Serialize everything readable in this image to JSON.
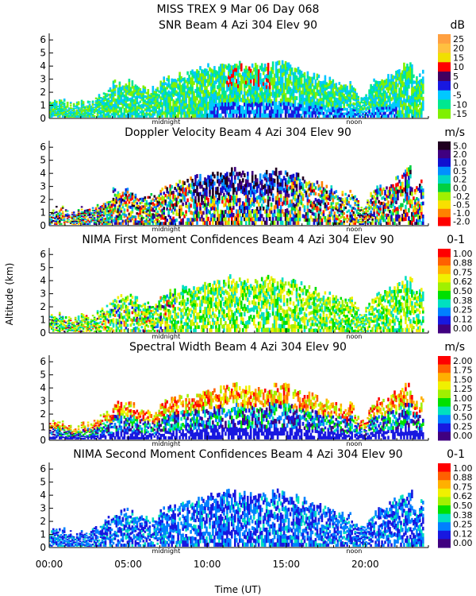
{
  "header": {
    "line1": "MISS TREX    9 Mar 06 Day 068"
  },
  "axes": {
    "ylabel": "Altitude (km)",
    "xlabel": "Time (UT)",
    "xticks": [
      "00:00",
      "05:00",
      "10:00",
      "15:00",
      "20:00"
    ],
    "yticks": [
      "0",
      "1",
      "2",
      "3",
      "4",
      "5",
      "6"
    ],
    "midnight_label": "midnight",
    "noon_label": "noon"
  },
  "chart_data": [
    {
      "type": "heatmap",
      "title": "SNR Beam 4 Azi 304 Elev 90",
      "unit": "dB",
      "colorbar_labels": [
        "25",
        "20",
        "15",
        "10",
        "5",
        "0",
        "-5",
        "-10",
        "-15"
      ],
      "colors": [
        "#ffa040",
        "#ffc040",
        "#f0e000",
        "#ff0000",
        "#400060",
        "#1818e0",
        "#00c8ff",
        "#00e890",
        "#80f000"
      ],
      "xlim": [
        0,
        24
      ],
      "ylim": [
        0,
        6.5
      ],
      "xlabel": "Time (UT)",
      "ylabel": "Altitude (km)"
    },
    {
      "type": "heatmap",
      "title": "Doppler Velocity Beam 4 Azi 304 Elev 90",
      "unit": "m/s",
      "colorbar_labels": [
        "5.0",
        "2.0",
        "1.0",
        "0.5",
        "0.2",
        "0.0",
        "-0.2",
        "-0.5",
        "-1.0",
        "-2.0"
      ],
      "colors": [
        "#200020",
        "#400080",
        "#1010d0",
        "#0090ff",
        "#00d8c0",
        "#00d040",
        "#a0f000",
        "#f8e000",
        "#ff8000",
        "#ff0000"
      ],
      "xlim": [
        0,
        24
      ],
      "ylim": [
        0,
        6.5
      ],
      "xlabel": "Time (UT)",
      "ylabel": "Altitude (km)"
    },
    {
      "type": "heatmap",
      "title": "NIMA First Moment Confidences Beam 4 Azi 304 Elev 90",
      "unit": "0-1",
      "colorbar_labels": [
        "1.00",
        "0.88",
        "0.75",
        "0.62",
        "0.50",
        "0.38",
        "0.25",
        "0.12",
        "0.00"
      ],
      "colors": [
        "#ff0000",
        "#ff6000",
        "#ffb000",
        "#f0f000",
        "#a0f000",
        "#00e000",
        "#00e0c0",
        "#0080ff",
        "#1818e0",
        "#400080"
      ],
      "xlim": [
        0,
        24
      ],
      "ylim": [
        0,
        6.5
      ],
      "xlabel": "Time (UT)",
      "ylabel": "Altitude (km)"
    },
    {
      "type": "heatmap",
      "title": "Spectral Width Beam 4 Azi 304 Elev 90",
      "unit": "m/s",
      "colorbar_labels": [
        "2.00",
        "1.75",
        "1.50",
        "1.25",
        "1.00",
        "0.75",
        "0.50",
        "0.25",
        "0.00"
      ],
      "colors": [
        "#ff0000",
        "#ff6000",
        "#ffb000",
        "#f0f000",
        "#a0f000",
        "#00e000",
        "#00e0c0",
        "#0080ff",
        "#1818e0",
        "#400080"
      ],
      "xlim": [
        0,
        24
      ],
      "ylim": [
        0,
        6.5
      ],
      "xlabel": "Time (UT)",
      "ylabel": "Altitude (km)"
    },
    {
      "type": "heatmap",
      "title": "NIMA Second Moment Confidences Beam 4 Azi 304 Elev 90",
      "unit": "0-1",
      "colorbar_labels": [
        "1.00",
        "0.88",
        "0.75",
        "0.62",
        "0.50",
        "0.38",
        "0.25",
        "0.12",
        "0.00"
      ],
      "colors": [
        "#ff0000",
        "#ff6000",
        "#ffb000",
        "#f0f000",
        "#a0f000",
        "#00e000",
        "#00e0c0",
        "#0080ff",
        "#1818e0",
        "#400080"
      ],
      "xlim": [
        0,
        24
      ],
      "ylim": [
        0,
        6.5
      ],
      "xlabel": "Time (UT)",
      "ylabel": "Altitude (km)"
    }
  ]
}
